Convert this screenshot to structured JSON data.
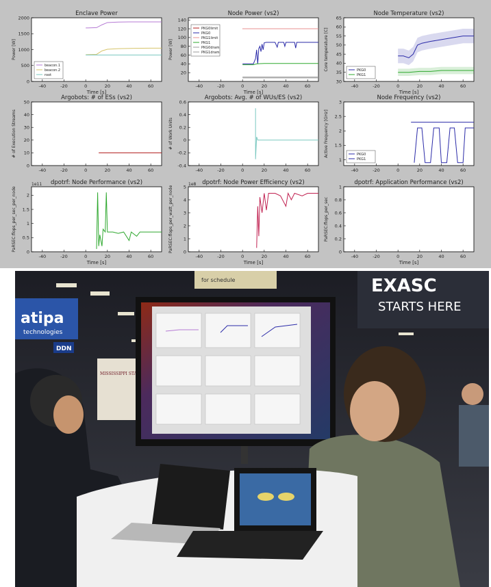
{
  "colors": {
    "panel_background": "#c3c3c3",
    "plot_background": "#ffffff",
    "axis": "#000000",
    "purple": "#b57ad4",
    "gold": "#d6c46a",
    "teal": "#7ac8c0",
    "darkred": "#b01818",
    "blue": "#2a2aa8",
    "lightred": "#e89090",
    "green": "#2ea82e",
    "grey": "#9a9a9a",
    "pink": "#c02050"
  },
  "chart_data": [
    {
      "type": "line",
      "title": "Enclave Power",
      "xlabel": "Time [s]",
      "ylabel": "Power [W]",
      "xlim": [
        -50,
        70
      ],
      "ylim": [
        0,
        2000
      ],
      "xticks": [
        -40,
        -20,
        0,
        20,
        40,
        60
      ],
      "yticks": [
        0,
        500,
        1000,
        1500,
        2000
      ],
      "legend": {
        "position": "bottom-left",
        "entries": [
          "beacon.1",
          "beacon.2",
          "root"
        ]
      },
      "series": [
        {
          "name": "beacon.1",
          "color": "purple",
          "points": [
            [
              0,
              1680
            ],
            [
              10,
              1690
            ],
            [
              15,
              1780
            ],
            [
              20,
              1850
            ],
            [
              30,
              1865
            ],
            [
              40,
              1870
            ],
            [
              50,
              1870
            ],
            [
              70,
              1870
            ]
          ]
        },
        {
          "name": "beacon.2",
          "color": "gold",
          "points": [
            [
              0,
              840
            ],
            [
              10,
              850
            ],
            [
              15,
              960
            ],
            [
              20,
              1010
            ],
            [
              30,
              1030
            ],
            [
              45,
              1040
            ],
            [
              60,
              1045
            ],
            [
              70,
              1045
            ]
          ]
        },
        {
          "name": "root",
          "color": "teal",
          "points": [
            [
              0,
              830
            ],
            [
              30,
              830
            ],
            [
              70,
              830
            ]
          ]
        }
      ]
    },
    {
      "type": "line",
      "title": "Node Power (vs2)",
      "xlabel": "Time [s]",
      "ylabel": "Power [W]",
      "xlim": [
        -50,
        70
      ],
      "ylim": [
        0,
        145
      ],
      "xticks": [
        -40,
        -20,
        0,
        20,
        40,
        60
      ],
      "yticks": [
        20,
        40,
        60,
        80,
        100,
        120,
        140
      ],
      "legend": {
        "position": "left",
        "entries": [
          "PKG0limit",
          "PKG0",
          "PKG1limit",
          "PKG1",
          "PKG0dram",
          "PKG1dram"
        ]
      },
      "series": [
        {
          "name": "PKG0limit",
          "color": "darkred",
          "points": [
            [
              0,
              120
            ],
            [
              70,
              120
            ]
          ]
        },
        {
          "name": "PKG0",
          "color": "blue",
          "points": [
            [
              0,
              40
            ],
            [
              10,
              40
            ],
            [
              12,
              52
            ],
            [
              13,
              72
            ],
            [
              14,
              40
            ],
            [
              15,
              75
            ],
            [
              16,
              80
            ],
            [
              17,
              68
            ],
            [
              18,
              85
            ],
            [
              19,
              72
            ],
            [
              20,
              88
            ],
            [
              22,
              89
            ],
            [
              30,
              89
            ],
            [
              32,
              78
            ],
            [
              33,
              89
            ],
            [
              38,
              89
            ],
            [
              39,
              80
            ],
            [
              40,
              89
            ],
            [
              48,
              89
            ],
            [
              49,
              76
            ],
            [
              50,
              89
            ],
            [
              70,
              89
            ]
          ]
        },
        {
          "name": "PKG1limit",
          "color": "lightred",
          "points": [
            [
              0,
              120
            ],
            [
              70,
              120
            ]
          ]
        },
        {
          "name": "PKG1",
          "color": "green",
          "points": [
            [
              0,
              38
            ],
            [
              10,
              38
            ],
            [
              13,
              40
            ],
            [
              20,
              41
            ],
            [
              70,
              41
            ]
          ]
        },
        {
          "name": "PKG0dram",
          "color": "grey",
          "points": [
            [
              0,
              10
            ],
            [
              70,
              10
            ]
          ]
        },
        {
          "name": "PKG1dram",
          "color": "grey",
          "points": [
            [
              0,
              8
            ],
            [
              70,
              8
            ]
          ]
        }
      ]
    },
    {
      "type": "line",
      "title": "Node Temperature (vs2)",
      "xlabel": "Time [s]",
      "ylabel": "Core temperature [C]",
      "xlim": [
        -50,
        70
      ],
      "ylim": [
        30,
        65
      ],
      "xticks": [
        -40,
        -20,
        0,
        20,
        40,
        60
      ],
      "yticks": [
        30,
        35,
        40,
        45,
        50,
        55,
        60,
        65
      ],
      "legend": {
        "position": "bottom-left",
        "entries": [
          "PKG0",
          "PKG1"
        ]
      },
      "series": [
        {
          "name": "PKG0",
          "color": "blue",
          "band": 4,
          "points": [
            [
              0,
              44
            ],
            [
              5,
              44
            ],
            [
              10,
              43
            ],
            [
              14,
              45
            ],
            [
              18,
              50
            ],
            [
              22,
              51
            ],
            [
              30,
              52
            ],
            [
              40,
              53
            ],
            [
              50,
              54
            ],
            [
              60,
              55
            ],
            [
              70,
              55
            ]
          ]
        },
        {
          "name": "PKG1",
          "color": "green",
          "band": 2,
          "points": [
            [
              0,
              35
            ],
            [
              10,
              35
            ],
            [
              20,
              35.5
            ],
            [
              30,
              35.5
            ],
            [
              40,
              36
            ],
            [
              50,
              36
            ],
            [
              60,
              36
            ],
            [
              70,
              36
            ]
          ]
        }
      ]
    },
    {
      "type": "line",
      "title": "Argobots: # of ESs (vs2)",
      "xlabel": "",
      "ylabel": "# of Execution Streams",
      "xlim": [
        -50,
        70
      ],
      "ylim": [
        0,
        50
      ],
      "xticks": [
        -40,
        -20,
        0,
        20,
        40,
        60
      ],
      "yticks": [
        0,
        10,
        20,
        30,
        40,
        50
      ],
      "series": [
        {
          "color": "darkred",
          "points": [
            [
              12,
              10
            ],
            [
              70,
              10
            ]
          ]
        }
      ]
    },
    {
      "type": "line",
      "title": "Argobots: Avg. # of WUs/ES (vs2)",
      "xlabel": "",
      "ylabel": "# of Work Units",
      "xlim": [
        -50,
        70
      ],
      "ylim": [
        -0.4,
        0.6
      ],
      "xticks": [
        -40,
        -20,
        0,
        20,
        40,
        60
      ],
      "yticks": [
        -0.4,
        -0.2,
        0.0,
        0.2,
        0.4,
        0.6
      ],
      "series": [
        {
          "color": "teal",
          "points": [
            [
              12,
              0.5
            ],
            [
              12,
              -0.3
            ],
            [
              13,
              0.05
            ],
            [
              14,
              0.0
            ],
            [
              70,
              0.0
            ]
          ]
        }
      ]
    },
    {
      "type": "line",
      "title": "Node Frequency (vs2)",
      "xlabel": "",
      "ylabel": "Active Frequency [GHz]",
      "xlim": [
        -50,
        70
      ],
      "ylim": [
        0.8,
        3.0
      ],
      "xticks": [
        -40,
        -20,
        0,
        20,
        40,
        60
      ],
      "yticks": [
        1.0,
        1.5,
        2.0,
        2.5,
        3.0
      ],
      "legend": {
        "position": "bottom-left",
        "entries": [
          "PKG0",
          "PKG1"
        ]
      },
      "series": [
        {
          "name": "PKG0",
          "color": "blue",
          "points": [
            [
              15,
              0.9
            ],
            [
              18,
              2.1
            ],
            [
              22,
              2.1
            ],
            [
              25,
              0.9
            ],
            [
              30,
              0.9
            ],
            [
              33,
              2.1
            ],
            [
              38,
              2.1
            ],
            [
              40,
              0.9
            ],
            [
              45,
              0.9
            ],
            [
              48,
              2.1
            ],
            [
              52,
              2.1
            ],
            [
              55,
              0.9
            ],
            [
              60,
              0.9
            ],
            [
              62,
              2.1
            ],
            [
              70,
              2.1
            ]
          ]
        },
        {
          "name": "PKG1",
          "color": "blue",
          "points": [
            [
              12,
              2.3
            ],
            [
              70,
              2.3
            ]
          ]
        }
      ]
    },
    {
      "type": "line",
      "title": "dpotrf: Node Performance (vs2)",
      "xlabel": "Time [s]",
      "ylabel": "PaRSEC:flops_per_sec_per_node",
      "y_multiplier": "1e11",
      "xlim": [
        -50,
        70
      ],
      "ylim": [
        0,
        2.3
      ],
      "xticks": [
        -40,
        -20,
        0,
        20,
        40,
        60
      ],
      "yticks": [
        0.0,
        0.5,
        1.0,
        1.5,
        2.0
      ],
      "series": [
        {
          "color": "green",
          "points": [
            [
              10,
              0.1
            ],
            [
              11,
              2.1
            ],
            [
              12,
              0.2
            ],
            [
              13,
              0.6
            ],
            [
              15,
              0.2
            ],
            [
              16,
              0.8
            ],
            [
              18,
              0.7
            ],
            [
              19,
              2.1
            ],
            [
              20,
              0.7
            ],
            [
              25,
              0.7
            ],
            [
              30,
              0.65
            ],
            [
              35,
              0.7
            ],
            [
              40,
              0.4
            ],
            [
              42,
              0.7
            ],
            [
              47,
              0.55
            ],
            [
              50,
              0.7
            ],
            [
              70,
              0.7
            ]
          ]
        }
      ]
    },
    {
      "type": "line",
      "title": "dpotrf: Node Power Efficiency (vs2)",
      "xlabel": "Time [s]",
      "ylabel": "PaRSEC:flops_per_watt_per_node",
      "y_multiplier": "1e8",
      "xlim": [
        -50,
        70
      ],
      "ylim": [
        0,
        5
      ],
      "xticks": [
        -40,
        -20,
        0,
        20,
        40,
        60
      ],
      "yticks": [
        0,
        1,
        2,
        3,
        4,
        5
      ],
      "series": [
        {
          "color": "pink",
          "points": [
            [
              13,
              0.3
            ],
            [
              14,
              3.5
            ],
            [
              15,
              1.2
            ],
            [
              16,
              4.2
            ],
            [
              18,
              3.0
            ],
            [
              20,
              4.5
            ],
            [
              22,
              3.2
            ],
            [
              24,
              4.5
            ],
            [
              30,
              4.5
            ],
            [
              35,
              4.3
            ],
            [
              40,
              3.5
            ],
            [
              42,
              4.5
            ],
            [
              45,
              4.0
            ],
            [
              48,
              4.5
            ],
            [
              55,
              4.3
            ],
            [
              60,
              4.5
            ],
            [
              70,
              4.5
            ]
          ]
        }
      ]
    },
    {
      "type": "line",
      "title": "dpotrf: Application Performance (vs2)",
      "xlabel": "Time [s]",
      "ylabel": "PaRSEC:flops_per_sec",
      "xlim": [
        -50,
        70
      ],
      "ylim": [
        0,
        1.0
      ],
      "xticks": [
        -40,
        -20,
        0,
        20,
        40,
        60
      ],
      "yticks": [
        0.0,
        0.2,
        0.4,
        0.6,
        0.8,
        1.0
      ],
      "series": []
    }
  ],
  "photo": {
    "signage": {
      "atipa": "atipa",
      "atipa_sub": "technologies",
      "ddn": "DDN",
      "mississippi": "MISSISSIPPI STATE",
      "exascale": "EXASC",
      "starts_here": "STARTS HERE",
      "schedule": "for schedule"
    }
  }
}
